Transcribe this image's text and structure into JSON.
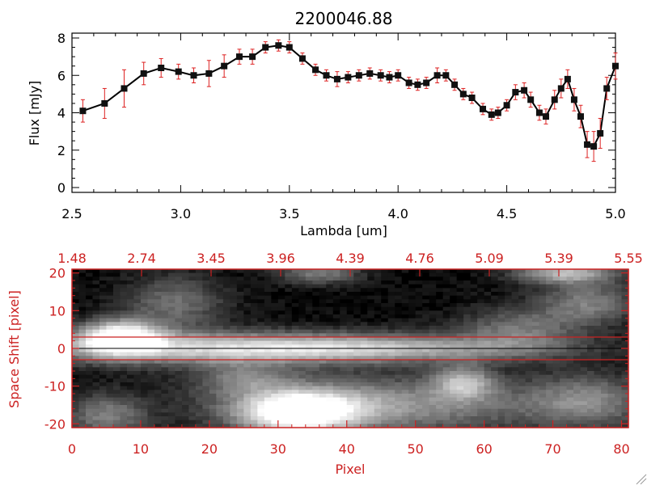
{
  "colors": {
    "axis_top": "#000000",
    "axis_bottom": "#cc2222",
    "errorbar": "#dd2222",
    "marker": "#111111"
  },
  "chart_data": [
    {
      "type": "line",
      "title": "2200046.88",
      "xlabel": "Lambda [um]",
      "ylabel": "Flux [mJy]",
      "xlim": [
        2.5,
        5.0
      ],
      "ylim": [
        0,
        8
      ],
      "xticks": [
        "2.5",
        "3.0",
        "3.5",
        "4.0",
        "4.5",
        "5.0"
      ],
      "yticks": [
        "0",
        "2",
        "4",
        "6",
        "8"
      ],
      "series": [
        {
          "name": "flux",
          "x": [
            2.55,
            2.65,
            2.74,
            2.83,
            2.91,
            2.99,
            3.06,
            3.13,
            3.2,
            3.27,
            3.33,
            3.39,
            3.45,
            3.5,
            3.56,
            3.62,
            3.67,
            3.72,
            3.77,
            3.82,
            3.87,
            3.92,
            3.96,
            4.0,
            4.05,
            4.09,
            4.13,
            4.18,
            4.22,
            4.26,
            4.3,
            4.34,
            4.39,
            4.43,
            4.46,
            4.5,
            4.54,
            4.58,
            4.61,
            4.65,
            4.68,
            4.72,
            4.75,
            4.78,
            4.81,
            4.84,
            4.87,
            4.9,
            4.93,
            4.96,
            5.0
          ],
          "y": [
            4.1,
            4.5,
            5.3,
            6.1,
            6.4,
            6.2,
            6.0,
            6.1,
            6.5,
            7.0,
            7.0,
            7.5,
            7.6,
            7.5,
            6.9,
            6.3,
            6.0,
            5.8,
            5.9,
            6.0,
            6.1,
            6.0,
            5.9,
            6.0,
            5.6,
            5.5,
            5.6,
            6.0,
            6.0,
            5.5,
            5.0,
            4.8,
            4.2,
            3.9,
            4.0,
            4.4,
            5.1,
            5.2,
            4.7,
            4.0,
            3.8,
            4.7,
            5.3,
            5.8,
            4.7,
            3.8,
            2.3,
            2.2,
            2.9,
            5.3,
            6.5
          ],
          "err": [
            0.6,
            0.8,
            1.0,
            0.6,
            0.5,
            0.4,
            0.4,
            0.7,
            0.6,
            0.4,
            0.4,
            0.3,
            0.3,
            0.3,
            0.3,
            0.3,
            0.3,
            0.4,
            0.3,
            0.3,
            0.3,
            0.3,
            0.3,
            0.3,
            0.3,
            0.3,
            0.3,
            0.4,
            0.3,
            0.3,
            0.3,
            0.3,
            0.3,
            0.3,
            0.3,
            0.3,
            0.4,
            0.4,
            0.4,
            0.4,
            0.4,
            0.5,
            0.5,
            0.5,
            0.6,
            0.6,
            0.7,
            0.8,
            0.8,
            0.6,
            0.7
          ]
        }
      ]
    },
    {
      "type": "heatmap",
      "xlabel": "Pixel",
      "ylabel": "Space Shift [pixel]",
      "xlim": [
        0,
        81
      ],
      "ylim": [
        -21,
        21
      ],
      "xticks": [
        "0",
        "10",
        "20",
        "30",
        "40",
        "50",
        "60",
        "70",
        "80"
      ],
      "yticks": [
        "-20",
        "-10",
        "0",
        "10",
        "20"
      ],
      "top_ticks": [
        "1.48",
        "2.74",
        "3.45",
        "3.96",
        "4.39",
        "4.76",
        "5.09",
        "5.39",
        "5.55"
      ],
      "extraction_window": [
        -3,
        3
      ],
      "trace_center": 0,
      "blobs": [
        {
          "x": 7,
          "y": 3,
          "sx": 4,
          "sy": 3,
          "a": 0.95
        },
        {
          "x": 20,
          "y": 0,
          "sx": 20,
          "sy": 3,
          "a": 0.55
        },
        {
          "x": 45,
          "y": 0,
          "sx": 18,
          "sy": 2.5,
          "a": 0.4
        },
        {
          "x": 33,
          "y": -17,
          "sx": 6,
          "sy": 4,
          "a": 0.9
        },
        {
          "x": 45,
          "y": -15,
          "sx": 16,
          "sy": 5,
          "a": 0.45
        },
        {
          "x": 57,
          "y": -9,
          "sx": 3,
          "sy": 3,
          "a": 0.5
        },
        {
          "x": 72,
          "y": 20,
          "sx": 5,
          "sy": 2,
          "a": 0.55
        },
        {
          "x": 36,
          "y": 20,
          "sx": 4,
          "sy": 2,
          "a": 0.35
        },
        {
          "x": 75,
          "y": 12,
          "sx": 5,
          "sy": 4,
          "a": 0.35
        },
        {
          "x": 5,
          "y": -18,
          "sx": 4,
          "sy": 4,
          "a": 0.35
        },
        {
          "x": 15,
          "y": 12,
          "sx": 5,
          "sy": 5,
          "a": 0.3
        },
        {
          "x": 75,
          "y": -14,
          "sx": 6,
          "sy": 5,
          "a": 0.35
        },
        {
          "x": 65,
          "y": 5,
          "sx": 6,
          "sy": 4,
          "a": 0.3
        },
        {
          "x": 25,
          "y": -8,
          "sx": 5,
          "sy": 3,
          "a": 0.3
        }
      ]
    }
  ]
}
